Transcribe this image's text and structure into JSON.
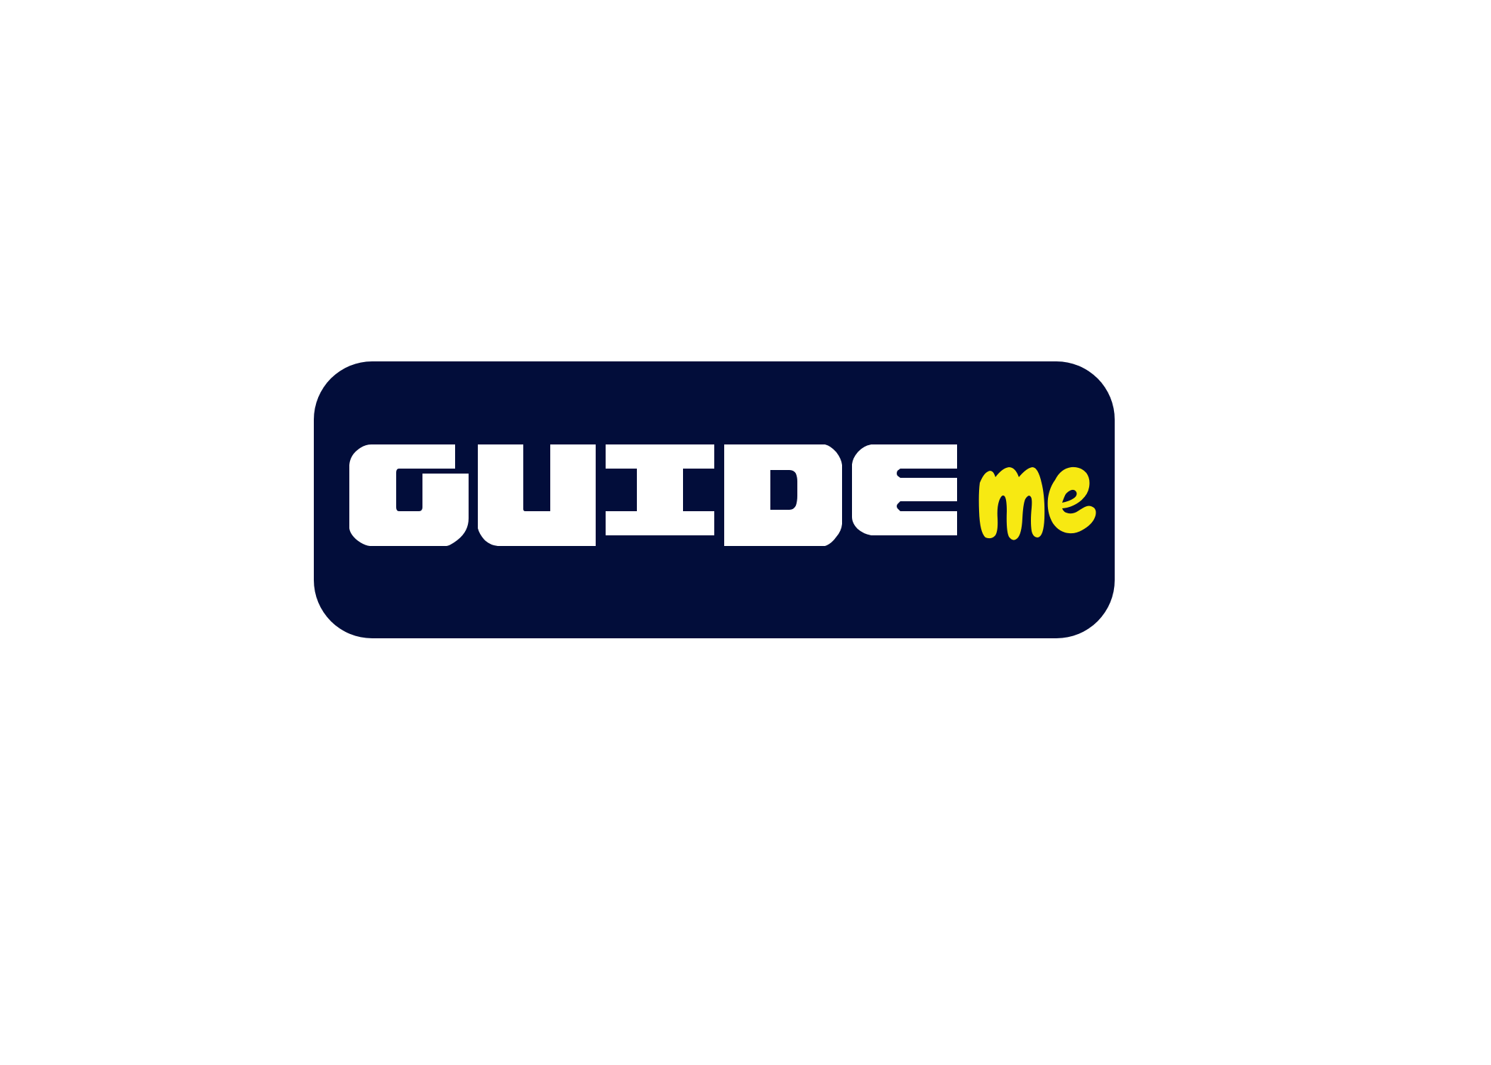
{
  "logo": {
    "primary_word": "GUIDE",
    "secondary_word": "me",
    "colors": {
      "badge_background": "#020d3a",
      "primary_text": "#ffffff",
      "secondary_text": "#f7e912"
    }
  }
}
